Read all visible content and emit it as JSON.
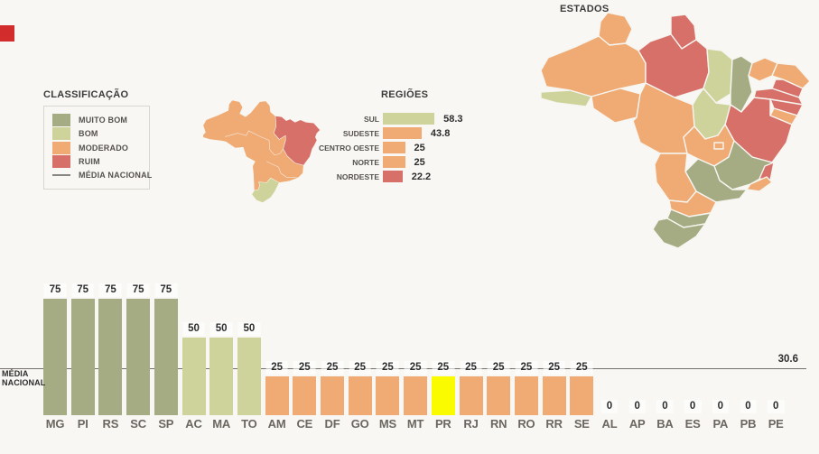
{
  "colors": {
    "background": "#f8f7f3",
    "muito_bom": "#a5ac83",
    "bom": "#cdd39a",
    "moderado": "#f0aa73",
    "ruim": "#d8706a",
    "highlight": "#fbfb00",
    "media_line": "#73706c",
    "title_text": "#3a3a3a",
    "label_text": "#55524e",
    "value_text": "#2d2d2d",
    "state_label_text": "#6b6660",
    "marker_red": "#d22c2c"
  },
  "legend": {
    "title": "CLASSIFICAÇÃO",
    "items": [
      {
        "label": "MUITO BOM",
        "class": "muito_bom"
      },
      {
        "label": "BOM",
        "class": "bom"
      },
      {
        "label": "MODERADO",
        "class": "moderado"
      },
      {
        "label": "RUIM",
        "class": "ruim"
      }
    ],
    "line_item_label": "MÉDIA NACIONAL"
  },
  "regioes_chart": {
    "title": "REGIÕES",
    "bars": [
      {
        "label": "SUL",
        "value": 58.3,
        "display": "58.3",
        "class": "bom"
      },
      {
        "label": "SUDESTE",
        "value": 43.8,
        "display": "43.8",
        "class": "moderado"
      },
      {
        "label": "CENTRO OESTE",
        "value": 25,
        "display": "25",
        "class": "moderado"
      },
      {
        "label": "NORTE",
        "value": 25,
        "display": "25",
        "class": "moderado"
      },
      {
        "label": "NORDESTE",
        "value": 22.2,
        "display": "22.2",
        "class": "ruim"
      }
    ]
  },
  "regioes_map": {
    "classifications": {
      "norte": "moderado",
      "nordeste": "ruim",
      "centro_oeste": "moderado",
      "sudeste": "moderado",
      "sul": "bom"
    }
  },
  "estados_map": {
    "title": "ESTADOS"
  },
  "national_average": {
    "label_line1": "MÉDIA",
    "label_line2": "NACIONAL",
    "value": 30.6,
    "display": "30.6"
  },
  "estados_chart": {
    "bars": [
      {
        "state": "MG",
        "value": 75,
        "display": "75",
        "class": "muito_bom",
        "highlight": false
      },
      {
        "state": "PI",
        "value": 75,
        "display": "75",
        "class": "muito_bom",
        "highlight": false
      },
      {
        "state": "RS",
        "value": 75,
        "display": "75",
        "class": "muito_bom",
        "highlight": false
      },
      {
        "state": "SC",
        "value": 75,
        "display": "75",
        "class": "muito_bom",
        "highlight": false
      },
      {
        "state": "SP",
        "value": 75,
        "display": "75",
        "class": "muito_bom",
        "highlight": false
      },
      {
        "state": "AC",
        "value": 50,
        "display": "50",
        "class": "bom",
        "highlight": false
      },
      {
        "state": "MA",
        "value": 50,
        "display": "50",
        "class": "bom",
        "highlight": false
      },
      {
        "state": "TO",
        "value": 50,
        "display": "50",
        "class": "bom",
        "highlight": false
      },
      {
        "state": "AM",
        "value": 25,
        "display": "25",
        "class": "moderado",
        "highlight": false
      },
      {
        "state": "CE",
        "value": 25,
        "display": "25",
        "class": "moderado",
        "highlight": false
      },
      {
        "state": "DF",
        "value": 25,
        "display": "25",
        "class": "moderado",
        "highlight": false
      },
      {
        "state": "GO",
        "value": 25,
        "display": "25",
        "class": "moderado",
        "highlight": false
      },
      {
        "state": "MS",
        "value": 25,
        "display": "25",
        "class": "moderado",
        "highlight": false
      },
      {
        "state": "MT",
        "value": 25,
        "display": "25",
        "class": "moderado",
        "highlight": false
      },
      {
        "state": "PR",
        "value": 25,
        "display": "25",
        "class": "moderado",
        "highlight": true
      },
      {
        "state": "RJ",
        "value": 25,
        "display": "25",
        "class": "moderado",
        "highlight": false
      },
      {
        "state": "RN",
        "value": 25,
        "display": "25",
        "class": "moderado",
        "highlight": false
      },
      {
        "state": "RO",
        "value": 25,
        "display": "25",
        "class": "moderado",
        "highlight": false
      },
      {
        "state": "RR",
        "value": 25,
        "display": "25",
        "class": "moderado",
        "highlight": false
      },
      {
        "state": "SE",
        "value": 25,
        "display": "25",
        "class": "moderado",
        "highlight": false
      },
      {
        "state": "AL",
        "value": 0,
        "display": "0",
        "class": "ruim",
        "highlight": false
      },
      {
        "state": "AP",
        "value": 0,
        "display": "0",
        "class": "ruim",
        "highlight": false
      },
      {
        "state": "BA",
        "value": 0,
        "display": "0",
        "class": "ruim",
        "highlight": false
      },
      {
        "state": "ES",
        "value": 0,
        "display": "0",
        "class": "ruim",
        "highlight": false
      },
      {
        "state": "PA",
        "value": 0,
        "display": "0",
        "class": "ruim",
        "highlight": false
      },
      {
        "state": "PB",
        "value": 0,
        "display": "0",
        "class": "ruim",
        "highlight": false
      },
      {
        "state": "PE",
        "value": 0,
        "display": "0",
        "class": "ruim",
        "highlight": false
      }
    ]
  },
  "chart_data": [
    {
      "type": "bar",
      "orientation": "horizontal",
      "title": "REGIÕES",
      "categories": [
        "SUL",
        "SUDESTE",
        "CENTRO OESTE",
        "NORTE",
        "NORDESTE"
      ],
      "values": [
        58.3,
        43.8,
        25,
        25,
        22.2
      ],
      "classifications": [
        "BOM",
        "MODERADO",
        "MODERADO",
        "MODERADO",
        "RUIM"
      ],
      "xlim": [
        0,
        60
      ],
      "grid": false,
      "value_labels": true
    },
    {
      "type": "bar",
      "orientation": "vertical",
      "title": "ESTADOS",
      "categories": [
        "MG",
        "PI",
        "RS",
        "SC",
        "SP",
        "AC",
        "MA",
        "TO",
        "AM",
        "CE",
        "DF",
        "GO",
        "MS",
        "MT",
        "PR",
        "RJ",
        "RN",
        "RO",
        "RR",
        "SE",
        "AL",
        "AP",
        "BA",
        "ES",
        "PA",
        "PB",
        "PE"
      ],
      "values": [
        75,
        75,
        75,
        75,
        75,
        50,
        50,
        50,
        25,
        25,
        25,
        25,
        25,
        25,
        25,
        25,
        25,
        25,
        25,
        25,
        0,
        0,
        0,
        0,
        0,
        0,
        0
      ],
      "classifications": [
        "MUITO BOM",
        "MUITO BOM",
        "MUITO BOM",
        "MUITO BOM",
        "MUITO BOM",
        "BOM",
        "BOM",
        "BOM",
        "MODERADO",
        "MODERADO",
        "MODERADO",
        "MODERADO",
        "MODERADO",
        "MODERADO",
        "MODERADO",
        "MODERADO",
        "MODERADO",
        "MODERADO",
        "MODERADO",
        "MODERADO",
        "RUIM",
        "RUIM",
        "RUIM",
        "RUIM",
        "RUIM",
        "RUIM",
        "RUIM"
      ],
      "highlighted_category": "PR",
      "reference_line": {
        "label": "MÉDIA NACIONAL",
        "value": 30.6
      },
      "ylim": [
        0,
        80
      ],
      "grid": false,
      "value_labels": true,
      "legend_position": "top-left"
    }
  ]
}
